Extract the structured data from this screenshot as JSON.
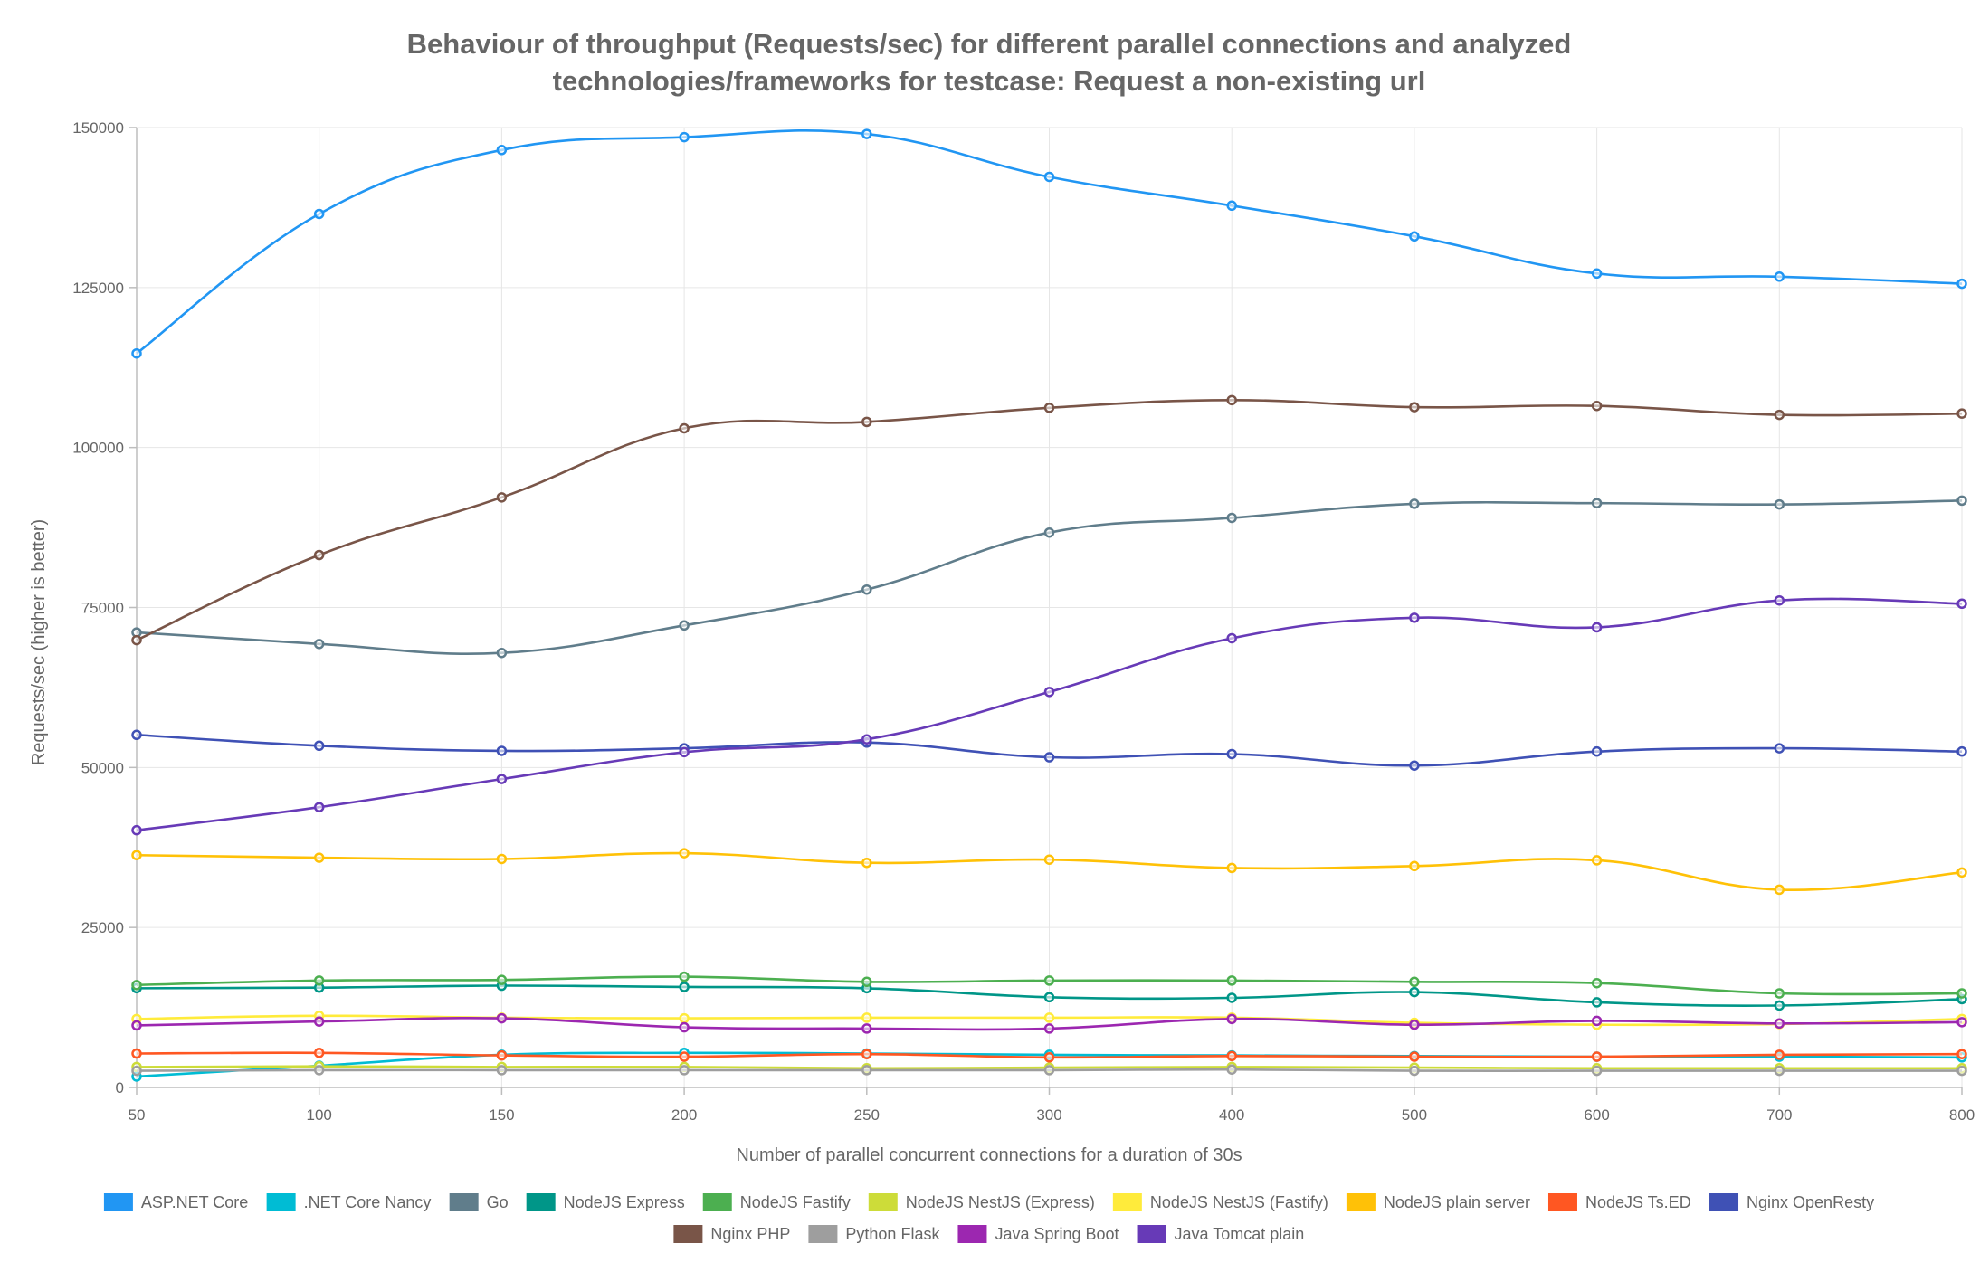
{
  "chart_data": {
    "type": "line",
    "title": [
      "Behaviour of throughput (Requests/sec) for different parallel connections and analyzed",
      "technologies/frameworks for testcase: Request a non-existing url"
    ],
    "xlabel": "Number of parallel concurrent connections for a duration of 30s",
    "ylabel": "Requests/sec (higher is better)",
    "categories": [
      "50",
      "100",
      "150",
      "200",
      "250",
      "300",
      "400",
      "500",
      "600",
      "700",
      "800"
    ],
    "ylim": [
      0,
      150000
    ],
    "yticks": [
      0,
      25000,
      50000,
      75000,
      100000,
      125000,
      150000
    ],
    "grid": true,
    "legend_position": "bottom",
    "series": [
      {
        "name": "ASP.NET Core",
        "color": "#2196f3",
        "values": [
          114700,
          136500,
          146500,
          148500,
          149000,
          142300,
          137800,
          133000,
          127200,
          126700,
          125600
        ]
      },
      {
        "name": ".NET Core Nancy",
        "color": "#00bcd4",
        "values": [
          1700,
          3400,
          5100,
          5400,
          5300,
          5100,
          5000,
          4900,
          4800,
          4800,
          4700
        ]
      },
      {
        "name": "Go",
        "color": "#607d8b",
        "values": [
          71100,
          69300,
          67900,
          72200,
          77800,
          86700,
          89000,
          91200,
          91300,
          91100,
          91700
        ]
      },
      {
        "name": "NodeJS Express",
        "color": "#009688",
        "values": [
          15500,
          15600,
          15900,
          15700,
          15500,
          14100,
          14000,
          14900,
          13300,
          12800,
          13800
        ]
      },
      {
        "name": "NodeJS Fastify",
        "color": "#4caf50",
        "values": [
          16000,
          16700,
          16800,
          17300,
          16500,
          16700,
          16700,
          16500,
          16300,
          14700,
          14700
        ]
      },
      {
        "name": "NodeJS NestJS (Express)",
        "color": "#cddc39",
        "values": [
          3200,
          3300,
          3200,
          3200,
          3000,
          3100,
          3200,
          3100,
          3000,
          3000,
          3000
        ]
      },
      {
        "name": "NodeJS NestJS (Fastify)",
        "color": "#ffeb3b",
        "values": [
          10700,
          11200,
          10900,
          10800,
          10900,
          10900,
          10900,
          10100,
          9800,
          9900,
          10700
        ]
      },
      {
        "name": "NodeJS plain server",
        "color": "#ffc107",
        "values": [
          36300,
          35900,
          35700,
          36600,
          35100,
          35600,
          34300,
          34600,
          35500,
          30900,
          33600
        ]
      },
      {
        "name": "NodeJS Ts.ED",
        "color": "#ff5722",
        "values": [
          5300,
          5400,
          5000,
          4800,
          5200,
          4700,
          4900,
          4800,
          4800,
          5100,
          5200
        ]
      },
      {
        "name": "Nginx OpenResty",
        "color": "#3f51b5",
        "values": [
          55100,
          53400,
          52600,
          53000,
          53900,
          51600,
          52100,
          50300,
          52500,
          53000,
          52500
        ]
      },
      {
        "name": "Nginx PHP",
        "color": "#795548",
        "values": [
          69900,
          83200,
          92200,
          103000,
          104000,
          106200,
          107400,
          106300,
          106500,
          105100,
          105300
        ]
      },
      {
        "name": "Python Flask",
        "color": "#9e9e9e",
        "values": [
          2600,
          2700,
          2700,
          2700,
          2700,
          2700,
          2800,
          2600,
          2600,
          2600,
          2600
        ]
      },
      {
        "name": "Java Spring Boot",
        "color": "#9c27b0",
        "values": [
          9700,
          10300,
          10800,
          9400,
          9200,
          9200,
          10700,
          9800,
          10400,
          10000,
          10200
        ]
      },
      {
        "name": "Java Tomcat plain",
        "color": "#673ab7",
        "values": [
          40200,
          43800,
          48200,
          52400,
          54400,
          61800,
          70200,
          73400,
          71900,
          76100,
          75600
        ]
      }
    ]
  }
}
